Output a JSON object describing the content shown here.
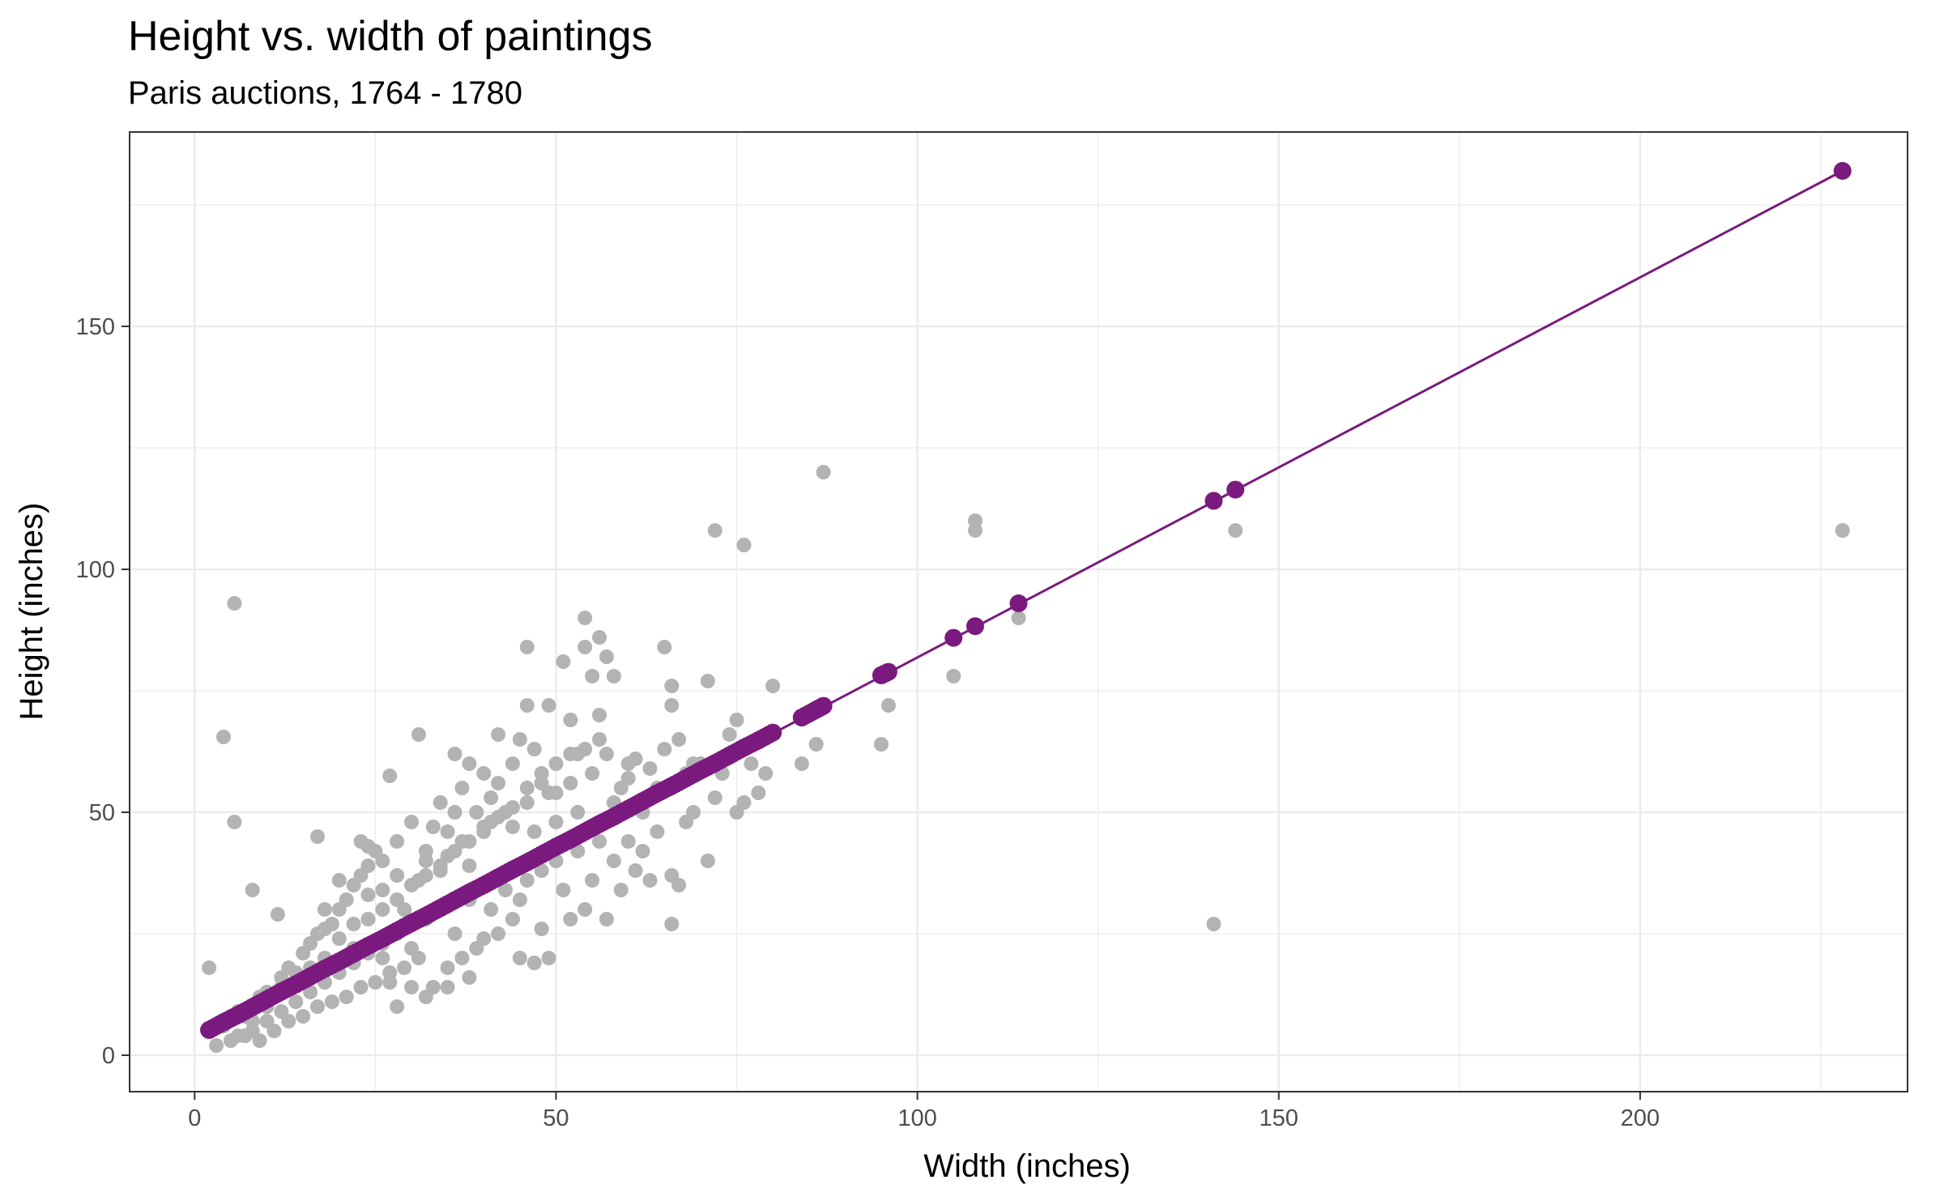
{
  "chart_data": {
    "type": "scatter",
    "title": "Height vs. width of paintings",
    "subtitle": "Paris auctions, 1764 - 1780",
    "xlabel": "Width (inches)",
    "ylabel": "Height (inches)",
    "xlim": [
      -9,
      237
    ],
    "ylim": [
      -7.5,
      190
    ],
    "x_ticks": [
      0,
      50,
      100,
      150,
      200
    ],
    "y_ticks": [
      0,
      50,
      100,
      150
    ],
    "grid": true,
    "legend": "none",
    "colors": {
      "points": "#b3b3b3",
      "fit": "#7a1a7e",
      "grid": "#ebebeb",
      "border": "#333333"
    },
    "series": [
      {
        "type": "scatter",
        "points": [
          [
            2,
            18
          ],
          [
            4,
            65.5
          ],
          [
            5.5,
            48
          ],
          [
            5.5,
            93
          ],
          [
            8,
            34
          ],
          [
            11.5,
            29
          ],
          [
            4,
            6
          ],
          [
            5,
            8
          ],
          [
            6,
            9
          ],
          [
            7,
            8
          ],
          [
            8,
            10
          ],
          [
            9,
            12
          ],
          [
            10,
            13
          ],
          [
            11,
            12
          ],
          [
            12,
            16
          ],
          [
            13,
            18
          ],
          [
            14,
            17
          ],
          [
            15,
            21
          ],
          [
            16,
            23
          ],
          [
            17,
            25
          ],
          [
            18,
            26
          ],
          [
            19,
            27
          ],
          [
            20,
            30
          ],
          [
            21,
            32
          ],
          [
            22,
            35
          ],
          [
            23,
            37
          ],
          [
            24,
            39
          ],
          [
            25,
            42
          ],
          [
            8,
            5
          ],
          [
            10,
            7
          ],
          [
            12,
            9
          ],
          [
            14,
            11
          ],
          [
            16,
            13
          ],
          [
            18,
            15
          ],
          [
            20,
            17
          ],
          [
            22,
            19
          ],
          [
            24,
            21
          ],
          [
            26,
            23
          ],
          [
            28,
            25
          ],
          [
            30,
            27
          ],
          [
            32,
            28
          ],
          [
            34,
            30
          ],
          [
            3,
            2
          ],
          [
            5,
            3
          ],
          [
            7,
            4
          ],
          [
            9,
            3
          ],
          [
            11,
            5
          ],
          [
            13,
            7
          ],
          [
            15,
            8
          ],
          [
            17,
            10
          ],
          [
            19,
            11
          ],
          [
            21,
            12
          ],
          [
            23,
            14
          ],
          [
            25,
            15
          ],
          [
            27,
            17
          ],
          [
            29,
            18
          ],
          [
            31,
            20
          ],
          [
            17,
            45
          ],
          [
            18,
            30
          ],
          [
            20,
            36
          ],
          [
            23,
            44
          ],
          [
            24,
            43
          ],
          [
            26,
            40
          ],
          [
            27,
            57.5
          ],
          [
            28,
            44
          ],
          [
            30,
            48
          ],
          [
            31,
            66
          ],
          [
            32,
            40
          ],
          [
            33,
            47
          ],
          [
            34,
            52
          ],
          [
            35,
            46
          ],
          [
            36,
            50
          ],
          [
            36,
            62
          ],
          [
            37,
            55
          ],
          [
            38,
            60
          ],
          [
            39,
            50
          ],
          [
            40,
            58
          ],
          [
            41,
            53
          ],
          [
            42,
            56
          ],
          [
            42,
            66
          ],
          [
            44,
            60
          ],
          [
            45,
            65
          ],
          [
            46,
            72
          ],
          [
            46,
            84
          ],
          [
            47,
            63
          ],
          [
            48,
            58
          ],
          [
            49,
            72
          ],
          [
            50,
            54
          ],
          [
            51,
            81
          ],
          [
            52,
            69
          ],
          [
            53,
            62
          ],
          [
            54,
            84
          ],
          [
            54,
            90
          ],
          [
            55,
            78
          ],
          [
            56,
            70
          ],
          [
            56,
            86
          ],
          [
            57,
            82
          ],
          [
            58,
            78
          ],
          [
            59,
            55
          ],
          [
            60,
            60
          ],
          [
            62,
            50
          ],
          [
            64,
            55
          ],
          [
            65,
            84
          ],
          [
            66,
            76
          ],
          [
            66,
            72
          ],
          [
            68,
            58
          ],
          [
            70,
            60
          ],
          [
            71,
            77
          ],
          [
            72,
            108
          ],
          [
            74,
            66
          ],
          [
            75,
            69
          ],
          [
            76,
            105
          ],
          [
            77,
            60
          ],
          [
            79,
            58
          ],
          [
            80,
            76
          ],
          [
            84,
            60
          ],
          [
            85,
            70
          ],
          [
            86,
            64
          ],
          [
            87,
            120
          ],
          [
            95,
            64
          ],
          [
            96,
            72
          ],
          [
            105,
            78
          ],
          [
            108,
            108
          ],
          [
            108,
            110
          ],
          [
            114,
            90
          ],
          [
            141,
            27
          ],
          [
            144,
            108
          ],
          [
            228,
            108
          ],
          [
            26,
            20
          ],
          [
            27,
            15
          ],
          [
            28,
            10
          ],
          [
            30,
            22
          ],
          [
            30,
            14
          ],
          [
            32,
            12
          ],
          [
            33,
            14
          ],
          [
            35,
            18
          ],
          [
            35,
            14
          ],
          [
            36,
            25
          ],
          [
            37,
            20
          ],
          [
            38,
            16
          ],
          [
            38,
            32
          ],
          [
            39,
            22
          ],
          [
            40,
            24
          ],
          [
            41,
            30
          ],
          [
            42,
            25
          ],
          [
            43,
            34
          ],
          [
            44,
            28
          ],
          [
            45,
            32
          ],
          [
            45,
            20
          ],
          [
            46,
            36
          ],
          [
            47,
            19
          ],
          [
            48,
            38
          ],
          [
            48,
            26
          ],
          [
            49,
            20
          ],
          [
            50,
            40
          ],
          [
            51,
            34
          ],
          [
            52,
            28
          ],
          [
            53,
            42
          ],
          [
            54,
            30
          ],
          [
            55,
            36
          ],
          [
            56,
            44
          ],
          [
            57,
            28
          ],
          [
            58,
            40
          ],
          [
            59,
            34
          ],
          [
            60,
            44
          ],
          [
            61,
            38
          ],
          [
            62,
            42
          ],
          [
            63,
            36
          ],
          [
            64,
            46
          ],
          [
            66,
            27
          ],
          [
            66,
            37
          ],
          [
            67,
            35
          ],
          [
            68,
            48
          ],
          [
            69,
            50
          ],
          [
            71,
            40
          ],
          [
            72,
            53
          ],
          [
            73,
            58
          ],
          [
            75,
            50
          ],
          [
            76,
            52
          ],
          [
            78,
            54
          ],
          [
            22,
            27
          ],
          [
            24,
            33
          ],
          [
            26,
            34
          ],
          [
            28,
            37
          ],
          [
            29,
            30
          ],
          [
            31,
            36
          ],
          [
            32,
            42
          ],
          [
            34,
            38
          ],
          [
            35,
            41
          ],
          [
            37,
            44
          ],
          [
            38,
            39
          ],
          [
            40,
            46
          ],
          [
            41,
            48
          ],
          [
            43,
            50
          ],
          [
            44,
            47
          ],
          [
            46,
            52
          ],
          [
            47,
            46
          ],
          [
            49,
            54
          ],
          [
            50,
            48
          ],
          [
            52,
            56
          ],
          [
            53,
            50
          ],
          [
            55,
            58
          ],
          [
            57,
            62
          ],
          [
            58,
            52
          ],
          [
            60,
            57
          ],
          [
            61,
            61
          ],
          [
            63,
            59
          ],
          [
            65,
            63
          ],
          [
            67,
            65
          ],
          [
            69,
            60
          ],
          [
            6,
            4
          ],
          [
            8,
            7
          ],
          [
            10,
            10
          ],
          [
            12,
            14
          ],
          [
            14,
            15
          ],
          [
            16,
            18
          ],
          [
            18,
            20
          ],
          [
            20,
            24
          ],
          [
            22,
            22
          ],
          [
            24,
            28
          ],
          [
            26,
            30
          ],
          [
            28,
            32
          ],
          [
            30,
            35
          ],
          [
            32,
            37
          ],
          [
            34,
            39
          ],
          [
            36,
            42
          ],
          [
            38,
            44
          ],
          [
            40,
            47
          ],
          [
            42,
            49
          ],
          [
            44,
            51
          ],
          [
            46,
            55
          ],
          [
            48,
            56
          ],
          [
            50,
            60
          ],
          [
            52,
            62
          ],
          [
            54,
            63
          ],
          [
            56,
            65
          ]
        ]
      },
      {
        "type": "line",
        "line": [
          [
            2,
            5.2
          ],
          [
            228,
            182
          ]
        ],
        "points": [
          [
            2,
            5.2
          ],
          [
            4,
            6.8
          ],
          [
            6,
            8.3
          ],
          [
            8,
            9.9
          ],
          [
            10,
            11.5
          ],
          [
            12,
            13.1
          ],
          [
            14,
            14.6
          ],
          [
            16,
            16.2
          ],
          [
            18,
            17.8
          ],
          [
            20,
            19.3
          ],
          [
            22,
            20.9
          ],
          [
            24,
            22.5
          ],
          [
            26,
            24.0
          ],
          [
            28,
            25.6
          ],
          [
            30,
            27.2
          ],
          [
            32,
            28.7
          ],
          [
            34,
            30.3
          ],
          [
            36,
            31.9
          ],
          [
            38,
            33.5
          ],
          [
            40,
            35.0
          ],
          [
            42,
            36.6
          ],
          [
            44,
            38.2
          ],
          [
            46,
            39.7
          ],
          [
            48,
            41.3
          ],
          [
            50,
            42.9
          ],
          [
            52,
            44.4
          ],
          [
            54,
            46.0
          ],
          [
            56,
            47.6
          ],
          [
            58,
            49.1
          ],
          [
            60,
            50.7
          ],
          [
            62,
            52.3
          ],
          [
            64,
            53.9
          ],
          [
            66,
            55.4
          ],
          [
            68,
            57.0
          ],
          [
            70,
            58.6
          ],
          [
            72,
            60.1
          ],
          [
            74,
            61.7
          ],
          [
            76,
            63.3
          ],
          [
            78,
            64.8
          ],
          [
            80,
            66.4
          ],
          [
            84,
            69.5
          ],
          [
            86,
            71.1
          ],
          [
            87,
            71.9
          ],
          [
            95,
            78.2
          ],
          [
            96,
            78.9
          ],
          [
            105,
            85.9
          ],
          [
            108,
            88.3
          ],
          [
            114,
            93.0
          ],
          [
            141,
            114.1
          ],
          [
            144,
            116.4
          ],
          [
            228,
            182.0
          ]
        ]
      }
    ]
  }
}
